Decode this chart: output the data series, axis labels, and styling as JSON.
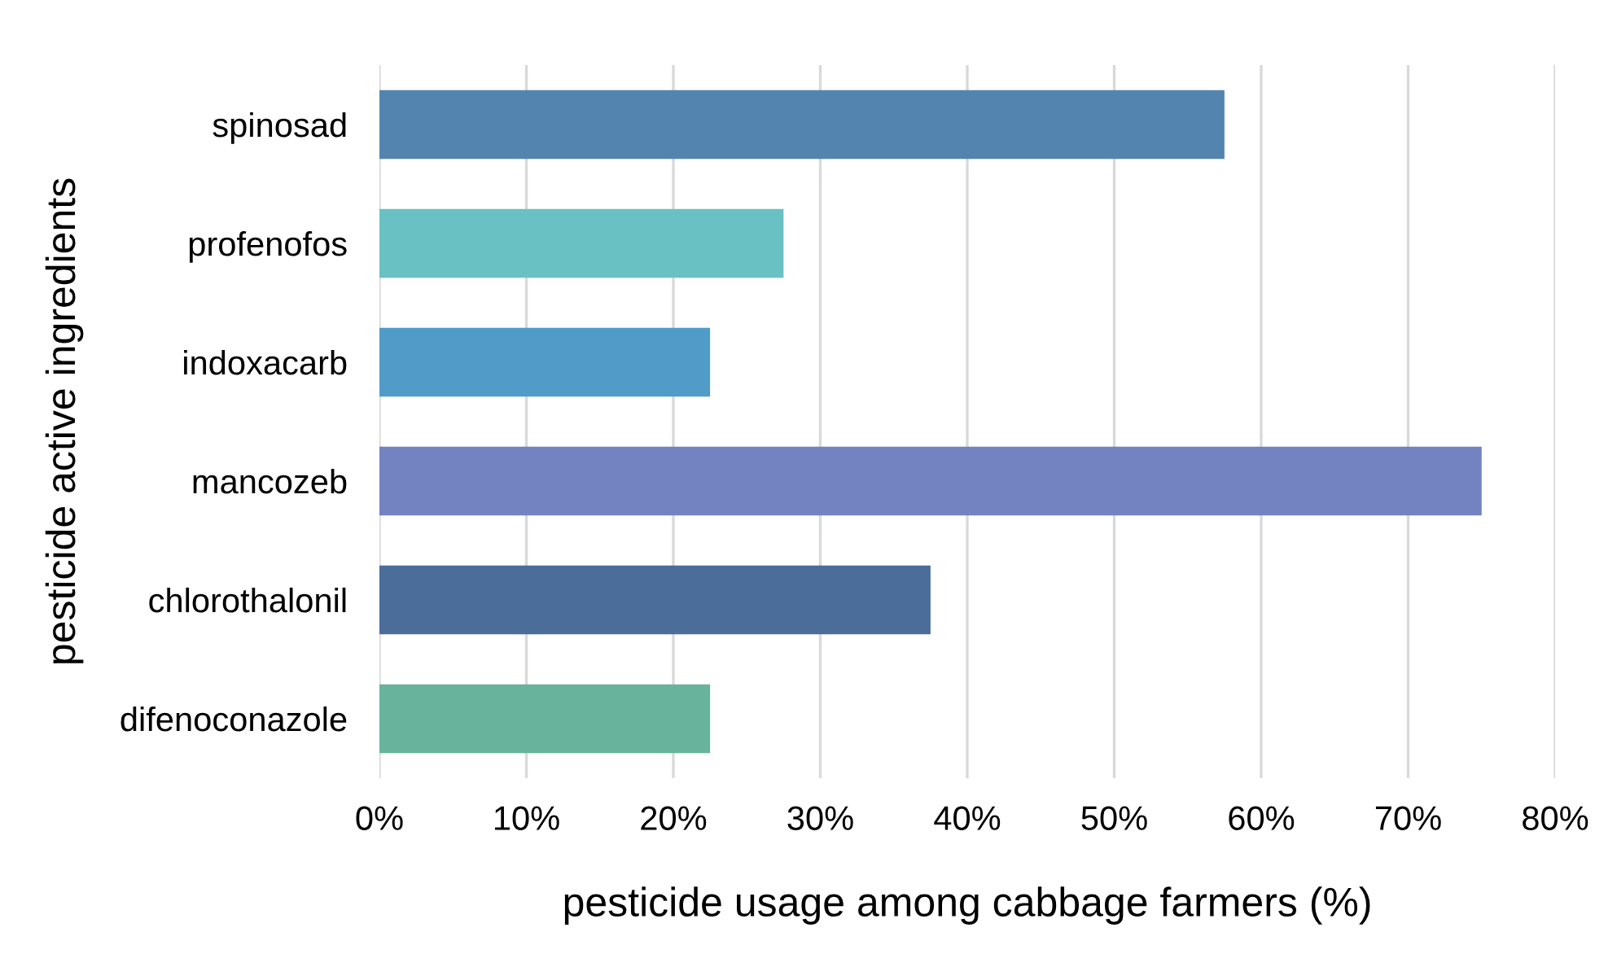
{
  "chart_data": {
    "type": "bar",
    "orientation": "horizontal",
    "xlabel": "pesticide usage among cabbage farmers (%)",
    "ylabel": "pesticide active ingredients",
    "categories": [
      "spinosad",
      "profenofos",
      "indoxacarb",
      "mancozeb",
      "chlorothalonil",
      "difenoconazole"
    ],
    "values": [
      57.5,
      27.5,
      22.5,
      75,
      37.5,
      22.5
    ],
    "colors": [
      "#5384b0",
      "#69c1c4",
      "#509bc8",
      "#7383c2",
      "#4a6d9a",
      "#67b39c"
    ],
    "xlim": [
      0,
      80
    ],
    "xticks": [
      {
        "value": 0,
        "label": "0%"
      },
      {
        "value": 10,
        "label": "10%"
      },
      {
        "value": 20,
        "label": "20%"
      },
      {
        "value": 30,
        "label": "30%"
      },
      {
        "value": 40,
        "label": "40%"
      },
      {
        "value": 50,
        "label": "50%"
      },
      {
        "value": 60,
        "label": "60%"
      },
      {
        "value": 70,
        "label": "70%"
      },
      {
        "value": 80,
        "label": "80%"
      }
    ],
    "grid": "x",
    "legend": false
  }
}
